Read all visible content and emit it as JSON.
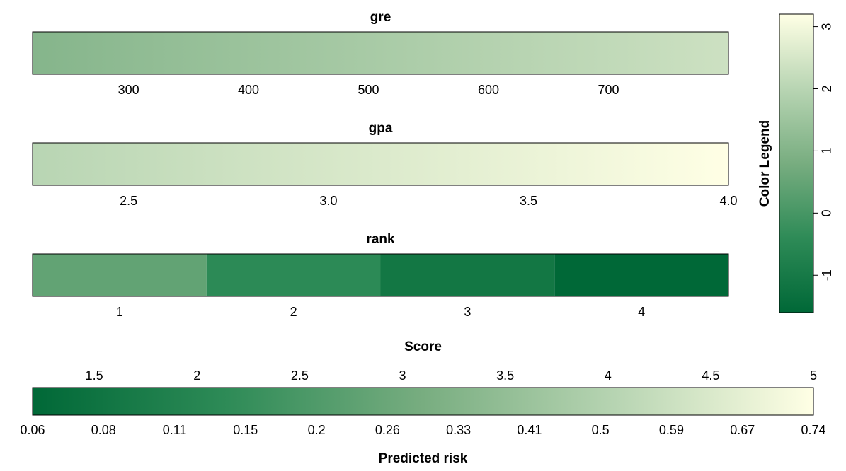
{
  "chart_data": {
    "type": "heatmap",
    "colors": {
      "low": "#006837",
      "mid": "#78AD80",
      "high": "#FFFFE5",
      "stops": [
        "#006837",
        "#2E8B57",
        "#78AD80",
        "#B8D5B3",
        "#FFFFE5"
      ]
    },
    "color_scale": {
      "min": -1.6,
      "max": 3.2
    },
    "color_legend": {
      "title": "Color Legend",
      "range": [
        -1.6,
        3.2
      ],
      "ticks": [
        -1,
        0,
        1,
        2,
        3
      ],
      "tick_labels": [
        "-1",
        "0",
        "1",
        "2",
        "3"
      ]
    },
    "panels": [
      {
        "name": "gre",
        "kind": "continuous",
        "range": [
          220,
          800
        ],
        "color_values": [
          1.05,
          2.35
        ],
        "ticks": [
          300,
          400,
          500,
          600,
          700
        ],
        "tick_labels": [
          "300",
          "400",
          "500",
          "600",
          "700"
        ]
      },
      {
        "name": "gpa",
        "kind": "continuous",
        "range": [
          2.26,
          4.0
        ],
        "color_values": [
          2.0,
          3.2
        ],
        "ticks": [
          2.5,
          3.0,
          3.5,
          4.0
        ],
        "tick_labels": [
          "2.5",
          "3.0",
          "3.5",
          "4.0"
        ]
      },
      {
        "name": "rank",
        "kind": "categorical",
        "range": [
          0.5,
          4.5
        ],
        "categories": [
          1,
          2,
          3,
          4
        ],
        "color_values": [
          0.45,
          -0.45,
          -1.1,
          -1.6
        ],
        "ticks": [
          1,
          2,
          3,
          4
        ],
        "tick_labels": [
          "1",
          "2",
          "3",
          "4"
        ]
      }
    ],
    "score_axis": {
      "title": "Score",
      "range": [
        1.2,
        5.0
      ],
      "ticks": [
        1.5,
        2,
        2.5,
        3,
        3.5,
        4,
        4.5,
        5
      ],
      "tick_labels": [
        "1.5",
        "2",
        "2.5",
        "3",
        "3.5",
        "4",
        "4.5",
        "5"
      ]
    },
    "risk_axis": {
      "title": "Predicted risk",
      "tick_labels": [
        "0.06",
        "0.08",
        "0.11",
        "0.15",
        "0.2",
        "0.26",
        "0.33",
        "0.41",
        "0.5",
        "0.59",
        "0.67",
        "0.74"
      ]
    }
  }
}
